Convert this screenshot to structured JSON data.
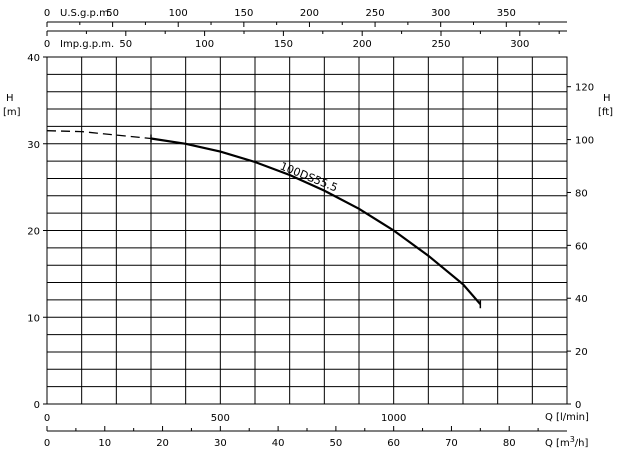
{
  "chart_data": {
    "type": "line",
    "y_left": {
      "label": "H",
      "unit": "[m]",
      "ticks": [
        "0",
        "10",
        "20",
        "30",
        "40"
      ],
      "range": [
        0,
        40
      ]
    },
    "y_right": {
      "label": "H",
      "unit": "[ft]",
      "ticks": [
        "0",
        "20",
        "40",
        "60",
        "80",
        "100",
        "120"
      ],
      "range_values": [
        0,
        20,
        40,
        60,
        80,
        100,
        120
      ]
    },
    "x_bottom": {
      "label": "Q [l/min]",
      "ticks": [
        "0",
        "500",
        "1000"
      ],
      "tick_values": [
        0,
        500,
        1000
      ],
      "range": [
        0,
        1500
      ]
    },
    "x_m3h": {
      "label": "Q [m",
      "label_sup": "3",
      "label_tail": "/h]",
      "ticks": [
        "0",
        "10",
        "20",
        "30",
        "40",
        "50",
        "60",
        "70",
        "80"
      ],
      "tick_values": [
        0,
        10,
        20,
        30,
        40,
        50,
        60,
        70,
        80
      ]
    },
    "x_usgpm": {
      "label": "U.S.g.p.m.",
      "ticks": [
        "0",
        "50",
        "100",
        "150",
        "200",
        "250",
        "300",
        "350"
      ],
      "tick_values": [
        0,
        50,
        100,
        150,
        200,
        250,
        300,
        350
      ]
    },
    "x_impgpm": {
      "label": "Imp.g.p.m.",
      "ticks": [
        "0",
        "50",
        "100",
        "150",
        "200",
        "250",
        "300"
      ],
      "tick_values": [
        0,
        50,
        100,
        150,
        200,
        250,
        300
      ]
    },
    "series": [
      {
        "name": "100DS55.5",
        "dashed_x": [
          0,
          100,
          200,
          300
        ],
        "dashed_y": [
          31.5,
          31.4,
          31.0,
          30.6
        ],
        "solid_x": [
          300,
          400,
          500,
          600,
          700,
          800,
          900,
          1000,
          1100,
          1200,
          1250
        ],
        "solid_y": [
          30.6,
          30.0,
          29.1,
          27.9,
          26.4,
          24.6,
          22.5,
          20.0,
          17.1,
          13.8,
          11.5
        ]
      }
    ],
    "grid": true
  }
}
